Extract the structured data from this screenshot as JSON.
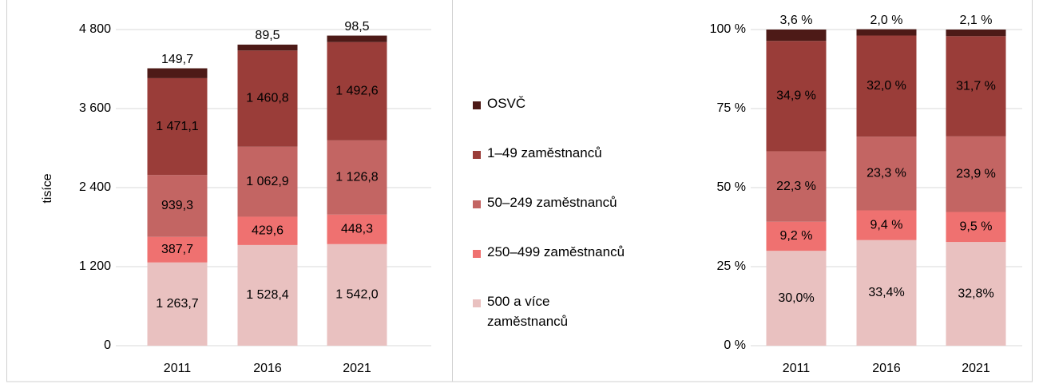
{
  "chart_data": [
    {
      "type": "bar",
      "stacked": true,
      "ylabel": "tisíce",
      "categories": [
        "2011",
        "2016",
        "2021"
      ],
      "ylim": [
        0,
        4800
      ],
      "yticks": [
        0,
        {
          "value": 1200,
          "label": "1 200"
        },
        {
          "value": 2400,
          "label": "2 400"
        },
        {
          "value": 3600,
          "label": "3 600"
        },
        {
          "value": 4800,
          "label": "4 800"
        }
      ],
      "grid": true,
      "legend": "right",
      "series": [
        {
          "name": "500 a více zaměstnanců",
          "color": "#e9c1c0",
          "values": [
            1263.7,
            1528.4,
            1542.0
          ],
          "value_labels": [
            "1 263,7",
            "1 528,4",
            "1 542,0"
          ]
        },
        {
          "name": "250–499 zaměstnanců",
          "color": "#ef7170",
          "values": [
            387.7,
            429.6,
            448.3
          ],
          "value_labels": [
            "387,7",
            "429,6",
            "448,3"
          ]
        },
        {
          "name": "50–249 zaměstnanců",
          "color": "#c36563",
          "values": [
            939.3,
            1062.9,
            1126.8
          ],
          "value_labels": [
            "939,3",
            "1 062,9",
            "1 126,8"
          ]
        },
        {
          "name": "1–49 zaměstnanců",
          "color": "#9a3d39",
          "values": [
            1471.1,
            1460.8,
            1492.6
          ],
          "value_labels": [
            "1 471,1",
            "1 460,8",
            "1 492,6"
          ]
        },
        {
          "name": "OSVČ",
          "color": "#4d1a17",
          "values": [
            149.7,
            89.5,
            98.5
          ],
          "value_labels": [
            "149,7",
            "89,5",
            "98,5"
          ]
        }
      ]
    },
    {
      "type": "bar",
      "stacked": true,
      "categories": [
        "2011",
        "2016",
        "2021"
      ],
      "ylim": [
        0,
        100
      ],
      "yticks": [
        {
          "value": 0,
          "label": "0 %"
        },
        {
          "value": 25,
          "label": "25 %"
        },
        {
          "value": 50,
          "label": "50 %"
        },
        {
          "value": 75,
          "label": "75 %"
        },
        {
          "value": 100,
          "label": "100 %"
        }
      ],
      "grid": true,
      "series": [
        {
          "color": "#e9c1c0",
          "values": [
            30.0,
            33.4,
            32.8
          ],
          "value_labels": [
            "30,0%",
            "33,4%",
            "32,8%"
          ]
        },
        {
          "color": "#ef7170",
          "values": [
            9.2,
            9.4,
            9.5
          ],
          "value_labels": [
            "9,2 %",
            "9,4 %",
            "9,5 %"
          ]
        },
        {
          "color": "#c36563",
          "values": [
            22.3,
            23.3,
            23.9
          ],
          "value_labels": [
            "22,3 %",
            "23,3 %",
            "23,9 %"
          ]
        },
        {
          "color": "#9a3d39",
          "values": [
            34.9,
            32.0,
            31.7
          ],
          "value_labels": [
            "34,9 %",
            "32,0 %",
            "31,7 %"
          ]
        },
        {
          "color": "#4d1a17",
          "values": [
            3.6,
            2.0,
            2.1
          ],
          "value_labels": [
            "3,6 %",
            "2,0 %",
            "2,1 %"
          ]
        }
      ]
    }
  ]
}
